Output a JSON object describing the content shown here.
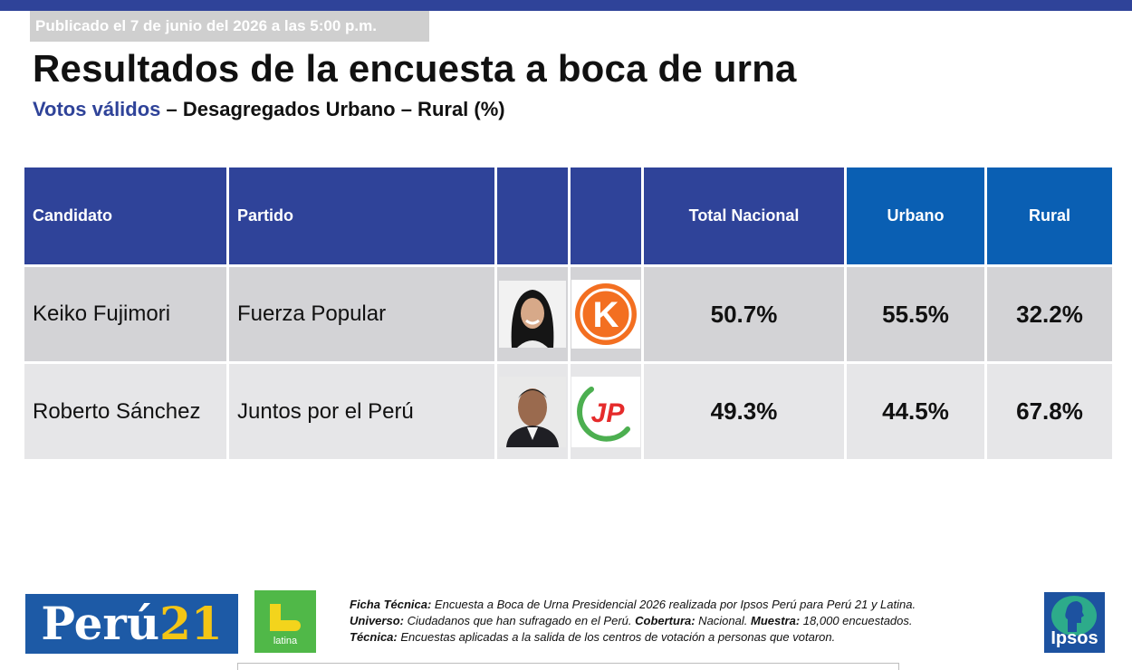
{
  "header": {
    "published": "Publicado el 7 de junio del 2026 a las 5:00 p.m.",
    "title": "Resultados de la encuesta a boca de urna",
    "subtitle_accent": "Votos válidos",
    "subtitle_rest": " – Desagregados Urbano – Rural (%)"
  },
  "table": {
    "columns": [
      "Candidato",
      "Partido",
      "",
      "",
      "Total Nacional",
      "Urbano",
      "Rural"
    ],
    "rows": [
      {
        "candidate": "Keiko Fujimori",
        "party": "Fuerza Popular",
        "party_logo_letter": "K",
        "total": "50.7%",
        "urbano": "55.5%",
        "rural": "32.2%"
      },
      {
        "candidate": "Roberto Sánchez",
        "party": "Juntos por el Perú",
        "party_logo_letter": "JP",
        "total": "49.3%",
        "urbano": "44.5%",
        "rural": "67.8%"
      }
    ]
  },
  "footer": {
    "peru21_brand": "Perú",
    "peru21_number": "21",
    "latina_word": "latina",
    "ipsos_word": "Ipsos",
    "ficha_label": "Ficha Técnica:",
    "ficha_text": " Encuesta a Boca de Urna Presidencial 2026 realizada por Ipsos Perú para Perú 21 y Latina.",
    "universo_label": "Universo:",
    "universo_text": " Ciudadanos que han sufragado en el Perú. ",
    "cobertura_label": "Cobertura:",
    "cobertura_text": " Nacional. ",
    "muestra_label": "Muestra:",
    "muestra_text": " 18,000 encuestados.",
    "tecnica_label": "Técnica:",
    "tecnica_text": " Encuestas aplicadas a la salida de los centros de votación a personas que votaron."
  },
  "colors": {
    "navy": "#2f4399",
    "blue": "#0a5fb3",
    "row1": "#d3d3d6",
    "row2": "#e6e6e8",
    "fuerza_popular_orange": "#f36f21",
    "juntos_green": "#4caf50",
    "juntos_red": "#e52b2b"
  }
}
